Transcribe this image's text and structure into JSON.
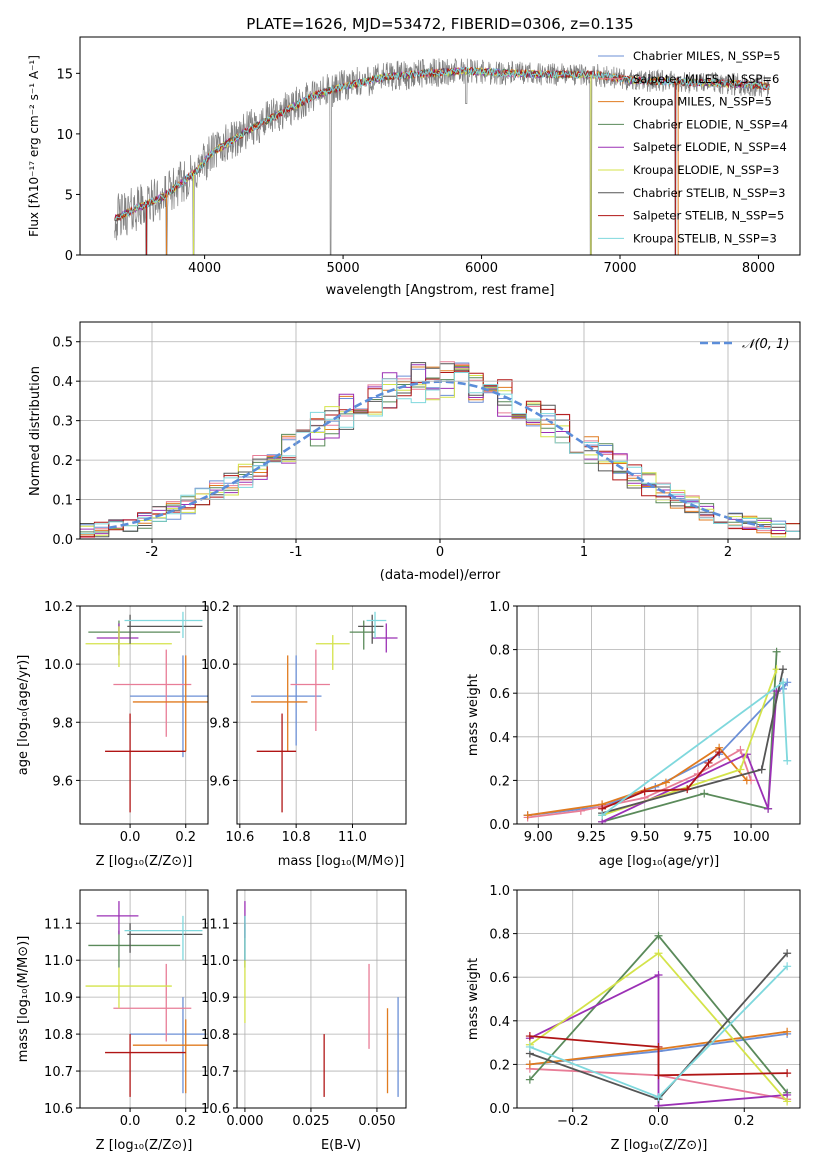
{
  "figure": {
    "title": "PLATE=1626, MJD=53472, FIBERID=0306, z=0.135"
  },
  "chart_data": [
    {
      "id": "spectrum",
      "type": "line",
      "xlabel": "wavelength [Angstrom, rest frame]",
      "ylabel": "Flux [fλ10⁻¹⁷ erg cm⁻² s⁻¹ A⁻¹]",
      "xlim": [
        3100,
        8300
      ],
      "ylim": [
        0,
        18
      ],
      "xticks": [
        4000,
        5000,
        6000,
        7000,
        8000
      ],
      "yticks": [
        0,
        5,
        10,
        15
      ],
      "grid": false,
      "legend_position": "top-right",
      "continuum": {
        "x": [
          3350,
          3500,
          3700,
          3950,
          4050,
          4300,
          4600,
          4800,
          5000,
          5300,
          5600,
          5900,
          6200,
          6500,
          6800,
          7100,
          7400,
          7700,
          8000,
          8080
        ],
        "y": [
          3.0,
          3.8,
          4.8,
          7.0,
          8.4,
          10.2,
          12.0,
          13.2,
          13.9,
          14.7,
          15.0,
          15.2,
          15.0,
          14.9,
          14.9,
          14.4,
          14.3,
          14.2,
          14.0,
          13.9
        ]
      },
      "dips": [
        [
          3580,
          0
        ],
        [
          3725,
          0
        ],
        [
          3920,
          0
        ],
        [
          4910,
          0
        ],
        [
          5890,
          12.5
        ],
        [
          6790,
          0
        ],
        [
          7400,
          0
        ]
      ],
      "series": [
        {
          "name": "Chabrier MILES, N_SSP=5",
          "color": "#6b8fd6"
        },
        {
          "name": "Salpeter MILES, N_SSP=6",
          "color": "#e87d97"
        },
        {
          "name": "Kroupa MILES, N_SSP=5",
          "color": "#e07b20"
        },
        {
          "name": "Chabrier ELODIE, N_SSP=4",
          "color": "#5a8a5a"
        },
        {
          "name": "Salpeter ELODIE, N_SSP=4",
          "color": "#9b30b5"
        },
        {
          "name": "Kroupa ELODIE, N_SSP=3",
          "color": "#d4e34a"
        },
        {
          "name": "Chabrier STELIB, N_SSP=3",
          "color": "#555555"
        },
        {
          "name": "Salpeter STELIB, N_SSP=5",
          "color": "#b01515"
        },
        {
          "name": "Kroupa STELIB, N_SSP=3",
          "color": "#7fd8dd"
        }
      ]
    },
    {
      "id": "residuals",
      "type": "line",
      "xlabel": "(data-model)/error",
      "ylabel": "Normed distribution",
      "xlim": [
        -2.5,
        2.5
      ],
      "ylim": [
        0,
        0.55
      ],
      "xticks": [
        -2,
        -1,
        0,
        1,
        2
      ],
      "yticks": [
        0.0,
        0.1,
        0.2,
        0.3,
        0.4,
        0.5
      ],
      "grid": true,
      "legend_position": "top-right",
      "reference": {
        "name": "𝒩(0, 1)",
        "color": "#5b8dd9"
      },
      "bin_width": 0.1
    },
    {
      "id": "age-vs-Z",
      "type": "scatter",
      "xlabel": "Z [log₁₀(Z/Z⊙)]",
      "ylabel": "age  [log₁₀(age/yr)]",
      "xlim": [
        -0.18,
        0.28
      ],
      "ylim": [
        9.45,
        10.2
      ],
      "xticks": [
        0.0,
        0.2
      ],
      "yticks": [
        9.6,
        9.8,
        10.0,
        10.2
      ],
      "grid": true,
      "points": [
        {
          "color": "#6b8fd6",
          "x": 0.19,
          "y": 9.89,
          "ex": [
            0.0,
            0.28
          ],
          "ey": [
            9.68,
            10.03
          ]
        },
        {
          "color": "#e87d97",
          "x": 0.13,
          "y": 9.93,
          "ex": [
            -0.06,
            0.22
          ],
          "ey": [
            9.75,
            10.05
          ]
        },
        {
          "color": "#e07b20",
          "x": 0.2,
          "y": 9.87,
          "ex": [
            0.01,
            0.28
          ],
          "ey": [
            9.7,
            10.03
          ]
        },
        {
          "color": "#5a8a5a",
          "x": -0.04,
          "y": 10.11,
          "ex": [
            -0.15,
            0.18
          ],
          "ey": [
            10.05,
            10.15
          ]
        },
        {
          "color": "#9b30b5",
          "x": -0.04,
          "y": 10.09,
          "ex": [
            -0.12,
            0.03
          ],
          "ey": [
            10.03,
            10.14
          ]
        },
        {
          "color": "#d4e34a",
          "x": -0.04,
          "y": 10.07,
          "ex": [
            -0.16,
            0.15
          ],
          "ey": [
            9.99,
            10.13
          ]
        },
        {
          "color": "#555555",
          "x": 0.0,
          "y": 10.13,
          "ex": [
            -0.01,
            0.26
          ],
          "ey": [
            10.07,
            10.17
          ]
        },
        {
          "color": "#b01515",
          "x": 0.0,
          "y": 9.7,
          "ex": [
            -0.09,
            0.2
          ],
          "ey": [
            9.49,
            9.83
          ]
        },
        {
          "color": "#7fd8dd",
          "x": 0.19,
          "y": 10.15,
          "ex": [
            -0.02,
            0.26
          ],
          "ey": [
            10.09,
            10.18
          ]
        }
      ]
    },
    {
      "id": "age-vs-mass",
      "type": "scatter",
      "xlabel": "mass [log₁₀(M/M⊙)]",
      "ylabel": "",
      "xlim": [
        10.59,
        11.19
      ],
      "ylim": [
        9.45,
        10.2
      ],
      "xticks": [
        10.6,
        10.8,
        11.0
      ],
      "yticks": [
        9.6,
        9.8,
        10.0,
        10.2
      ],
      "grid": true,
      "points": [
        {
          "color": "#6b8fd6",
          "x": 10.8,
          "y": 9.89,
          "ex": [
            10.64,
            10.89
          ],
          "ey": [
            9.72,
            10.03
          ]
        },
        {
          "color": "#e87d97",
          "x": 10.87,
          "y": 9.93,
          "ex": [
            10.78,
            10.92
          ],
          "ey": [
            9.77,
            10.05
          ]
        },
        {
          "color": "#e07b20",
          "x": 10.77,
          "y": 9.87,
          "ex": [
            10.64,
            10.84
          ],
          "ey": [
            9.7,
            10.03
          ]
        },
        {
          "color": "#5a8a5a",
          "x": 11.04,
          "y": 10.11,
          "ex": [
            10.99,
            11.08
          ],
          "ey": [
            10.05,
            10.15
          ]
        },
        {
          "color": "#9b30b5",
          "x": 11.12,
          "y": 10.09,
          "ex": [
            11.07,
            11.16
          ],
          "ey": [
            10.04,
            10.14
          ]
        },
        {
          "color": "#d4e34a",
          "x": 10.93,
          "y": 10.07,
          "ex": [
            10.87,
            10.99
          ],
          "ey": [
            9.98,
            10.1
          ]
        },
        {
          "color": "#555555",
          "x": 11.07,
          "y": 10.13,
          "ex": [
            11.02,
            11.11
          ],
          "ey": [
            10.07,
            10.17
          ]
        },
        {
          "color": "#b01515",
          "x": 10.75,
          "y": 9.7,
          "ex": [
            10.66,
            10.8
          ],
          "ey": [
            9.49,
            9.83
          ]
        },
        {
          "color": "#7fd8dd",
          "x": 11.08,
          "y": 10.15,
          "ex": [
            11.05,
            11.12
          ],
          "ey": [
            10.09,
            10.18
          ]
        }
      ]
    },
    {
      "id": "weight-vs-age",
      "type": "line",
      "xlabel": "age  [log₁₀(age/yr)]",
      "ylabel": "mass weight",
      "xlim": [
        8.9,
        10.23
      ],
      "ylim": [
        0,
        1.0
      ],
      "xticks": [
        9.0,
        9.25,
        9.5,
        9.75,
        10.0
      ],
      "yticks": [
        0.0,
        0.2,
        0.4,
        0.6,
        0.8,
        1.0
      ],
      "grid": true,
      "series": [
        {
          "color": "#6b8fd6",
          "x": [
            8.95,
            9.3,
            9.55,
            9.85,
            10.17,
            10.15
          ],
          "y": [
            0.04,
            0.08,
            0.17,
            0.32,
            0.65,
            0.62
          ]
        },
        {
          "color": "#e87d97",
          "x": [
            8.95,
            9.2,
            9.5,
            9.75,
            9.95,
            10.0
          ],
          "y": [
            0.03,
            0.06,
            0.12,
            0.23,
            0.34,
            0.2
          ]
        },
        {
          "color": "#e07b20",
          "x": [
            8.95,
            9.3,
            9.6,
            9.85,
            9.98
          ],
          "y": [
            0.04,
            0.09,
            0.19,
            0.35,
            0.2
          ]
        },
        {
          "color": "#5a8a5a",
          "x": [
            9.3,
            9.78,
            10.08,
            10.12
          ],
          "y": [
            0.01,
            0.14,
            0.07,
            0.79
          ]
        },
        {
          "color": "#9b30b5",
          "x": [
            9.3,
            9.98,
            10.08,
            10.12
          ],
          "y": [
            0.01,
            0.32,
            0.07,
            0.61
          ]
        },
        {
          "color": "#d4e34a",
          "x": [
            9.3,
            9.95,
            10.12
          ],
          "y": [
            0.04,
            0.25,
            0.71
          ]
        },
        {
          "color": "#555555",
          "x": [
            9.3,
            10.05,
            10.15
          ],
          "y": [
            0.05,
            0.25,
            0.71
          ]
        },
        {
          "color": "#b01515",
          "x": [
            9.3,
            9.5,
            9.7,
            9.8,
            9.85
          ],
          "y": [
            0.07,
            0.15,
            0.16,
            0.28,
            0.33
          ]
        },
        {
          "color": "#7fd8dd",
          "x": [
            9.3,
            10.15,
            10.17
          ],
          "y": [
            0.04,
            0.65,
            0.29
          ]
        }
      ]
    },
    {
      "id": "mass-vs-Z",
      "type": "scatter",
      "xlabel": "Z [log₁₀(Z/Z⊙)]",
      "ylabel": "mass [log₁₀(M/M⊙)]",
      "xlim": [
        -0.18,
        0.28
      ],
      "ylim": [
        10.6,
        11.19
      ],
      "xticks": [
        0.0,
        0.2
      ],
      "yticks": [
        10.6,
        10.7,
        10.8,
        10.9,
        11.0,
        11.1
      ],
      "grid": true,
      "points": [
        {
          "color": "#6b8fd6",
          "x": 0.19,
          "y": 10.8,
          "ex": [
            0.0,
            0.27
          ],
          "ey": [
            10.64,
            10.9
          ]
        },
        {
          "color": "#e87d97",
          "x": 0.13,
          "y": 10.87,
          "ex": [
            -0.06,
            0.22
          ],
          "ey": [
            10.78,
            10.99
          ]
        },
        {
          "color": "#e07b20",
          "x": 0.2,
          "y": 10.77,
          "ex": [
            0.01,
            0.28
          ],
          "ey": [
            10.64,
            10.84
          ]
        },
        {
          "color": "#5a8a5a",
          "x": -0.04,
          "y": 11.04,
          "ex": [
            -0.15,
            0.18
          ],
          "ey": [
            10.98,
            11.08
          ]
        },
        {
          "color": "#9b30b5",
          "x": -0.04,
          "y": 11.12,
          "ex": [
            -0.12,
            0.03
          ],
          "ey": [
            11.07,
            11.16
          ]
        },
        {
          "color": "#d4e34a",
          "x": -0.04,
          "y": 10.93,
          "ex": [
            -0.16,
            0.15
          ],
          "ey": [
            10.87,
            10.98
          ]
        },
        {
          "color": "#555555",
          "x": 0.0,
          "y": 11.07,
          "ex": [
            -0.01,
            0.26
          ],
          "ey": [
            11.02,
            11.1
          ]
        },
        {
          "color": "#b01515",
          "x": 0.0,
          "y": 10.75,
          "ex": [
            -0.09,
            0.2
          ],
          "ey": [
            10.63,
            10.8
          ]
        },
        {
          "color": "#7fd8dd",
          "x": 0.19,
          "y": 11.08,
          "ex": [
            -0.02,
            0.26
          ],
          "ey": [
            11.0,
            11.12
          ]
        }
      ]
    },
    {
      "id": "mass-vs-ebv",
      "type": "scatter",
      "xlabel": "E(B-V)",
      "ylabel": "",
      "xlim": [
        -0.003,
        0.061
      ],
      "ylim": [
        10.6,
        11.19
      ],
      "xticks": [
        0.0,
        0.025,
        0.05
      ],
      "yticks": [
        10.6,
        10.7,
        10.8,
        10.9,
        11.0,
        11.1
      ],
      "grid": true,
      "points": [
        {
          "color": "#6b8fd6",
          "x": 0.058,
          "y": 10.8,
          "ey": [
            10.63,
            10.9
          ]
        },
        {
          "color": "#e87d97",
          "x": 0.047,
          "y": 10.87,
          "ey": [
            10.76,
            10.99
          ]
        },
        {
          "color": "#e07b20",
          "x": 0.054,
          "y": 10.77,
          "ey": [
            10.64,
            10.87
          ]
        },
        {
          "color": "#5a8a5a",
          "x": 0.0,
          "y": 11.04,
          "ey": [
            10.98,
            11.1
          ]
        },
        {
          "color": "#9b30b5",
          "x": 0.0,
          "y": 11.12,
          "ey": [
            11.06,
            11.16
          ]
        },
        {
          "color": "#d4e34a",
          "x": 0.0,
          "y": 10.93,
          "ey": [
            10.83,
            11.0
          ]
        },
        {
          "color": "#555555",
          "x": 0.0,
          "y": 11.07,
          "ey": [
            11.0,
            11.12
          ]
        },
        {
          "color": "#b01515",
          "x": 0.03,
          "y": 10.75,
          "ey": [
            10.63,
            10.8
          ]
        },
        {
          "color": "#7fd8dd",
          "x": 0.0,
          "y": 11.08,
          "ey": [
            11.0,
            11.12
          ]
        }
      ]
    },
    {
      "id": "weight-vs-Z",
      "type": "line",
      "xlabel": "Z [log₁₀(Z/Z⊙)]",
      "ylabel": "mass weight",
      "xlim": [
        -0.33,
        0.33
      ],
      "ylim": [
        0,
        1.0
      ],
      "xticks": [
        -0.2,
        0.0,
        0.2
      ],
      "yticks": [
        0.0,
        0.2,
        0.4,
        0.6,
        0.8,
        1.0
      ],
      "grid": true,
      "series": [
        {
          "color": "#6b8fd6",
          "x": [
            -0.3,
            0.0,
            0.3
          ],
          "y": [
            0.2,
            0.26,
            0.34
          ]
        },
        {
          "color": "#e87d97",
          "x": [
            -0.3,
            0.0,
            0.3
          ],
          "y": [
            0.18,
            0.15,
            0.04
          ]
        },
        {
          "color": "#e07b20",
          "x": [
            -0.3,
            0.0,
            0.3
          ],
          "y": [
            0.2,
            0.27,
            0.35
          ]
        },
        {
          "color": "#5a8a5a",
          "x": [
            -0.3,
            0.0,
            0.3
          ],
          "y": [
            0.13,
            0.79,
            0.07
          ]
        },
        {
          "color": "#9b30b5",
          "x": [
            -0.3,
            0.0,
            0.0,
            0.3
          ],
          "y": [
            0.32,
            0.61,
            0.01,
            0.06
          ]
        },
        {
          "color": "#d4e34a",
          "x": [
            -0.3,
            0.0,
            0.3
          ],
          "y": [
            0.29,
            0.71,
            0.03
          ]
        },
        {
          "color": "#555555",
          "x": [
            -0.3,
            0.0,
            0.3
          ],
          "y": [
            0.25,
            0.04,
            0.71
          ]
        },
        {
          "color": "#b01515",
          "x": [
            -0.3,
            0.0,
            0.0,
            0.3
          ],
          "y": [
            0.33,
            0.28,
            0.15,
            0.16
          ]
        },
        {
          "color": "#7fd8dd",
          "x": [
            -0.3,
            0.0,
            0.3
          ],
          "y": [
            0.28,
            0.05,
            0.65
          ]
        }
      ]
    }
  ]
}
